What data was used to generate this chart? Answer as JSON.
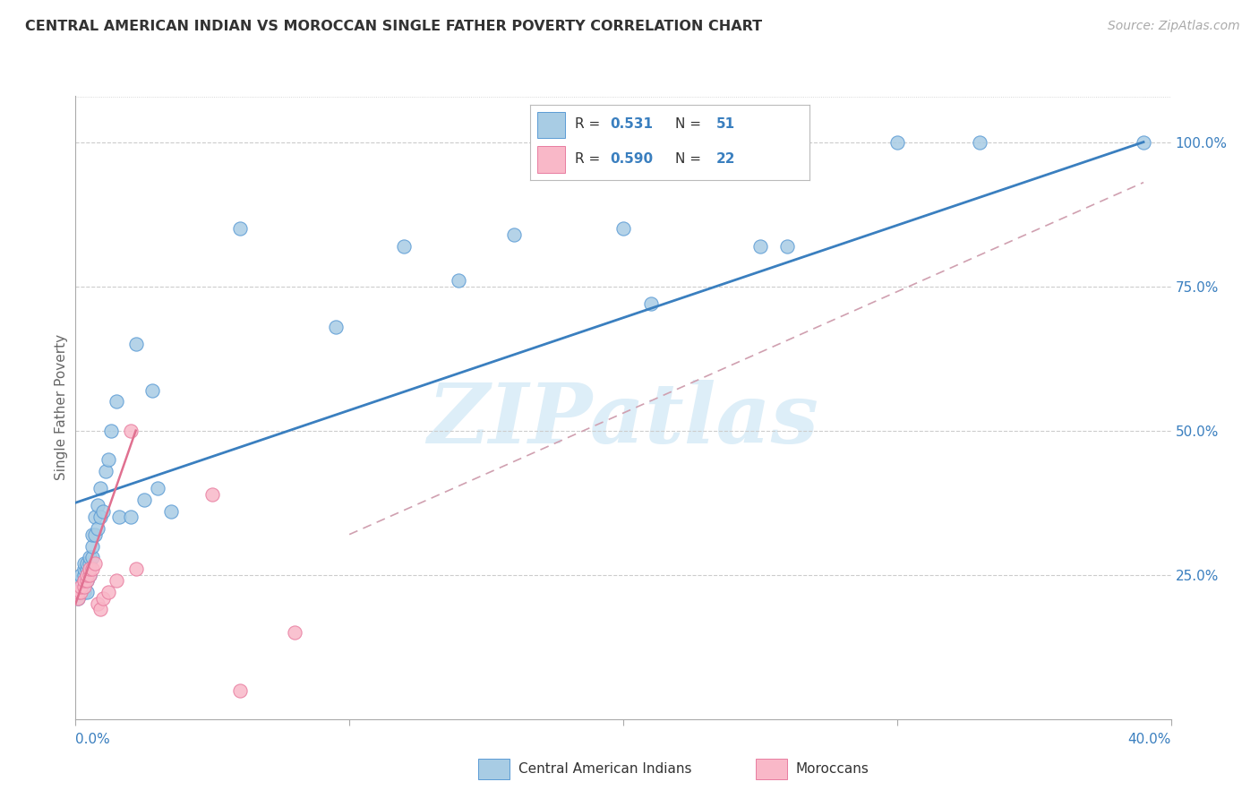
{
  "title": "CENTRAL AMERICAN INDIAN VS MOROCCAN SINGLE FATHER POVERTY CORRELATION CHART",
  "source": "Source: ZipAtlas.com",
  "ylabel": "Single Father Poverty",
  "blue_color": "#a8cce4",
  "pink_color": "#f9b8c8",
  "blue_edge_color": "#5b9bd5",
  "pink_edge_color": "#e87da0",
  "blue_line_color": "#3a7fbf",
  "pink_line_color": "#e07090",
  "dashed_line_color": "#d0a0b0",
  "axis_label_color": "#3a7fbf",
  "title_color": "#333333",
  "source_color": "#aaaaaa",
  "watermark_text": "ZIPatlas",
  "watermark_color": "#ddeef8",
  "grid_color": "#cccccc",
  "blue_R": "0.531",
  "blue_N": "51",
  "pink_R": "0.590",
  "pink_N": "22",
  "legend_label_1": "Central American Indians",
  "legend_label_2": "Moroccans",
  "xlim": [
    0.0,
    0.4
  ],
  "ylim": [
    0.0,
    1.08
  ],
  "xpct_labels": [
    "0.0%",
    "40.0%"
  ],
  "ypct_labels": [
    "25.0%",
    "50.0%",
    "75.0%",
    "100.0%"
  ],
  "ygrid_values": [
    0.25,
    0.5,
    0.75,
    1.0
  ],
  "blue_scatter_x": [
    0.001,
    0.001,
    0.002,
    0.002,
    0.002,
    0.003,
    0.003,
    0.003,
    0.003,
    0.003,
    0.003,
    0.004,
    0.004,
    0.004,
    0.004,
    0.005,
    0.005,
    0.005,
    0.006,
    0.006,
    0.006,
    0.007,
    0.007,
    0.008,
    0.008,
    0.009,
    0.009,
    0.01,
    0.011,
    0.012,
    0.013,
    0.015,
    0.016,
    0.02,
    0.022,
    0.025,
    0.028,
    0.03,
    0.035,
    0.06,
    0.095,
    0.12,
    0.14,
    0.16,
    0.2,
    0.21,
    0.25,
    0.26,
    0.3,
    0.33,
    0.39
  ],
  "blue_scatter_y": [
    0.21,
    0.23,
    0.22,
    0.24,
    0.25,
    0.22,
    0.23,
    0.24,
    0.25,
    0.26,
    0.27,
    0.22,
    0.24,
    0.26,
    0.27,
    0.25,
    0.27,
    0.28,
    0.28,
    0.3,
    0.32,
    0.32,
    0.35,
    0.33,
    0.37,
    0.35,
    0.4,
    0.36,
    0.43,
    0.45,
    0.5,
    0.55,
    0.35,
    0.35,
    0.65,
    0.38,
    0.57,
    0.4,
    0.36,
    0.85,
    0.68,
    0.82,
    0.76,
    0.84,
    0.85,
    0.72,
    0.82,
    0.82,
    1.0,
    1.0,
    1.0
  ],
  "pink_scatter_x": [
    0.001,
    0.001,
    0.002,
    0.002,
    0.003,
    0.003,
    0.004,
    0.004,
    0.005,
    0.005,
    0.006,
    0.007,
    0.008,
    0.009,
    0.01,
    0.012,
    0.015,
    0.02,
    0.022,
    0.05,
    0.06,
    0.08
  ],
  "pink_scatter_y": [
    0.21,
    0.22,
    0.22,
    0.23,
    0.23,
    0.24,
    0.24,
    0.25,
    0.25,
    0.26,
    0.26,
    0.27,
    0.2,
    0.19,
    0.21,
    0.22,
    0.24,
    0.5,
    0.26,
    0.39,
    0.05,
    0.15
  ],
  "blue_line": [
    0.0,
    0.375,
    0.39,
    1.0
  ],
  "pink_line": [
    0.0,
    0.2,
    0.022,
    0.5
  ],
  "dashed_line": [
    0.1,
    0.32,
    0.39,
    0.93
  ]
}
